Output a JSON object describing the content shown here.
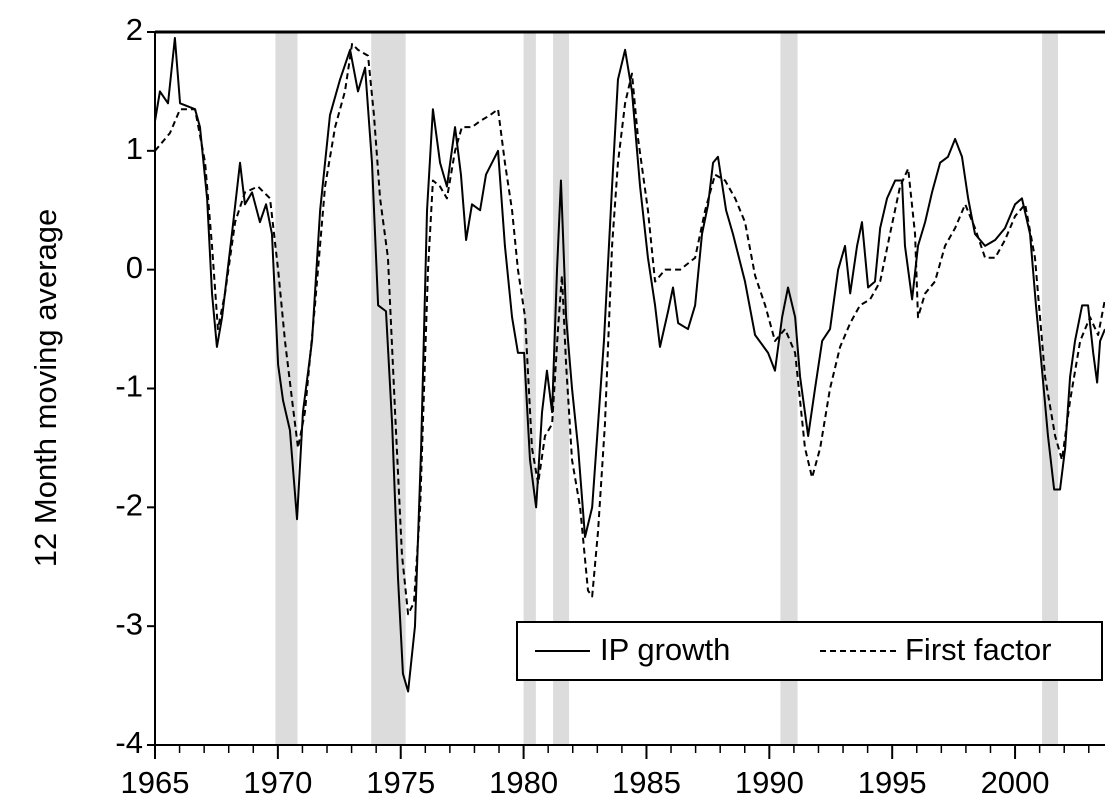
{
  "chart_data": {
    "type": "line",
    "y_label": "12 Month moving  average",
    "xlim": [
      1965,
      2003.66
    ],
    "ylim": [
      -4,
      2
    ],
    "xticks": [
      1965,
      1970,
      1975,
      1980,
      1985,
      1990,
      1995,
      2000
    ],
    "xminorticks": [
      1966,
      1967,
      1968,
      1969,
      1971,
      1972,
      1973,
      1974,
      1976,
      1977,
      1978,
      1979,
      1981,
      1982,
      1983,
      1984,
      1986,
      1987,
      1988,
      1989,
      1991,
      1992,
      1993,
      1994,
      1996,
      1997,
      1998,
      1999,
      2001,
      2002,
      2003
    ],
    "yticks": [
      2,
      1,
      0,
      -1,
      -2,
      -3,
      -4
    ],
    "legend": "lower right",
    "recession_color": "#dcdcdc",
    "recessions": [
      [
        1969.9,
        1970.8
      ],
      [
        1973.8,
        1975.2
      ],
      [
        1980.0,
        1980.5
      ],
      [
        1981.2,
        1981.85
      ],
      [
        1990.45,
        1991.15
      ],
      [
        2001.1,
        2001.75
      ]
    ],
    "series": [
      {
        "name": "IP growth",
        "color": "#000000",
        "dash": "solid",
        "x": [
          1965.0,
          1965.2,
          1965.53,
          1965.81,
          1966.02,
          1966.63,
          1966.83,
          1967.12,
          1967.32,
          1967.52,
          1967.73,
          1968.13,
          1968.46,
          1968.66,
          1968.95,
          1969.27,
          1969.52,
          1969.76,
          1970.01,
          1970.21,
          1970.49,
          1970.78,
          1971.02,
          1971.39,
          1971.72,
          1972.12,
          1972.53,
          1972.94,
          1973.26,
          1973.55,
          1973.83,
          1974.08,
          1974.4,
          1974.65,
          1974.89,
          1975.09,
          1975.3,
          1975.58,
          1975.83,
          1976.07,
          1976.31,
          1976.6,
          1976.88,
          1977.21,
          1977.45,
          1977.66,
          1977.9,
          1978.23,
          1978.47,
          1978.96,
          1979.24,
          1979.53,
          1979.77,
          1980.02,
          1980.26,
          1980.51,
          1980.75,
          1980.95,
          1981.16,
          1981.36,
          1981.52,
          1981.73,
          1981.97,
          1982.22,
          1982.5,
          1982.79,
          1983.03,
          1983.27,
          1983.6,
          1983.84,
          1984.13,
          1984.41,
          1984.74,
          1985.06,
          1985.35,
          1985.55,
          1985.88,
          1986.08,
          1986.29,
          1986.69,
          1986.98,
          1987.26,
          1987.51,
          1987.71,
          1987.91,
          1988.24,
          1988.52,
          1989.01,
          1989.42,
          1989.95,
          1990.23,
          1990.52,
          1990.76,
          1991.05,
          1991.25,
          1991.58,
          1991.86,
          1992.15,
          1992.47,
          1992.8,
          1993.08,
          1993.29,
          1993.57,
          1993.77,
          1994.02,
          1994.3,
          1994.51,
          1994.79,
          1995.12,
          1995.4,
          1995.52,
          1995.81,
          1996.05,
          1996.34,
          1996.62,
          1996.95,
          1997.27,
          1997.56,
          1997.84,
          1998.09,
          1998.37,
          1998.78,
          1999.19,
          1999.59,
          2000.0,
          2000.28,
          2000.61,
          2000.85,
          2001.1,
          2001.34,
          2001.59,
          2001.83,
          2002.04,
          2002.24,
          2002.44,
          2002.73,
          2002.97,
          2003.18,
          2003.34,
          2003.46,
          2003.66
        ],
        "values": [
          1.25,
          1.5,
          1.4,
          1.95,
          1.4,
          1.35,
          1.2,
          0.6,
          -0.2,
          -0.65,
          -0.4,
          0.3,
          0.9,
          0.55,
          0.65,
          0.4,
          0.55,
          0.3,
          -0.8,
          -1.1,
          -1.35,
          -2.1,
          -1.2,
          -0.6,
          0.5,
          1.3,
          1.6,
          1.85,
          1.5,
          1.7,
          0.9,
          -0.3,
          -0.35,
          -1.3,
          -2.6,
          -3.4,
          -3.55,
          -3.0,
          -1.5,
          0.5,
          1.35,
          0.9,
          0.7,
          1.2,
          0.8,
          0.25,
          0.55,
          0.5,
          0.8,
          1.0,
          0.2,
          -0.4,
          -0.7,
          -0.7,
          -1.6,
          -2.0,
          -1.2,
          -0.85,
          -1.2,
          0.0,
          0.75,
          -0.4,
          -1.0,
          -1.5,
          -2.25,
          -2.0,
          -1.3,
          -0.6,
          0.7,
          1.6,
          1.85,
          1.5,
          0.7,
          0.1,
          -0.3,
          -0.65,
          -0.35,
          -0.15,
          -0.45,
          -0.5,
          -0.3,
          0.3,
          0.55,
          0.9,
          0.95,
          0.5,
          0.3,
          -0.1,
          -0.55,
          -0.7,
          -0.85,
          -0.4,
          -0.15,
          -0.4,
          -0.9,
          -1.4,
          -1.0,
          -0.6,
          -0.5,
          0.0,
          0.2,
          -0.2,
          0.2,
          0.4,
          -0.15,
          -0.1,
          0.35,
          0.6,
          0.75,
          0.75,
          0.2,
          -0.25,
          0.2,
          0.4,
          0.65,
          0.9,
          0.95,
          1.1,
          0.95,
          0.6,
          0.3,
          0.2,
          0.25,
          0.35,
          0.55,
          0.6,
          0.3,
          -0.3,
          -0.85,
          -1.4,
          -1.85,
          -1.85,
          -1.5,
          -0.9,
          -0.6,
          -0.3,
          -0.3,
          -0.7,
          -0.95,
          -0.6,
          -0.5
        ]
      },
      {
        "name": "First factor",
        "color": "#000000",
        "dash": "dashed",
        "x": [
          1965.0,
          1965.61,
          1966.02,
          1966.63,
          1967.04,
          1967.32,
          1967.56,
          1967.85,
          1968.26,
          1968.66,
          1969.19,
          1969.68,
          1970.01,
          1970.29,
          1970.58,
          1970.82,
          1971.1,
          1971.51,
          1971.92,
          1972.33,
          1972.73,
          1973.02,
          1973.26,
          1973.67,
          1973.91,
          1974.16,
          1974.48,
          1974.77,
          1975.05,
          1975.3,
          1975.54,
          1975.79,
          1976.11,
          1976.31,
          1976.6,
          1976.88,
          1977.21,
          1977.49,
          1977.9,
          1978.23,
          1978.63,
          1978.96,
          1979.24,
          1979.53,
          1979.77,
          1980.06,
          1980.34,
          1980.59,
          1980.87,
          1981.16,
          1981.4,
          1981.56,
          1981.73,
          1981.97,
          1982.3,
          1982.62,
          1982.79,
          1983.03,
          1983.31,
          1983.6,
          1983.84,
          1984.13,
          1984.41,
          1984.66,
          1985.06,
          1985.35,
          1985.76,
          1986.37,
          1986.98,
          1987.39,
          1987.79,
          1988.2,
          1988.61,
          1989.01,
          1989.42,
          1989.83,
          1990.23,
          1990.64,
          1991.05,
          1991.45,
          1991.74,
          1992.07,
          1992.47,
          1992.88,
          1993.29,
          1993.69,
          1994.1,
          1994.51,
          1994.91,
          1995.32,
          1995.65,
          1995.93,
          1996.05,
          1996.34,
          1996.74,
          1997.15,
          1997.56,
          1997.97,
          1998.37,
          1998.78,
          1999.19,
          1999.59,
          2000.0,
          2000.41,
          2000.81,
          2001.22,
          2001.63,
          2001.91,
          2002.24,
          2002.65,
          2003.05,
          2003.38,
          2003.66
        ],
        "values": [
          1.0,
          1.15,
          1.35,
          1.35,
          0.9,
          0.2,
          -0.5,
          -0.2,
          0.4,
          0.65,
          0.7,
          0.6,
          0.0,
          -0.6,
          -1.1,
          -1.5,
          -1.2,
          -0.3,
          0.7,
          1.2,
          1.5,
          1.9,
          1.85,
          1.8,
          1.3,
          0.6,
          0.1,
          -1.2,
          -2.4,
          -2.9,
          -2.8,
          -2.0,
          0.0,
          0.75,
          0.7,
          0.6,
          1.0,
          1.2,
          1.2,
          1.25,
          1.3,
          1.35,
          0.9,
          0.5,
          0.0,
          -0.4,
          -1.5,
          -1.8,
          -1.4,
          -1.3,
          -0.5,
          -0.05,
          -0.8,
          -1.6,
          -2.0,
          -2.7,
          -2.75,
          -2.2,
          -1.3,
          0.2,
          0.9,
          1.4,
          1.65,
          1.1,
          0.5,
          -0.1,
          0.0,
          0.0,
          0.1,
          0.5,
          0.8,
          0.75,
          0.6,
          0.4,
          -0.05,
          -0.3,
          -0.6,
          -0.5,
          -0.7,
          -1.5,
          -1.75,
          -1.5,
          -1.0,
          -0.65,
          -0.45,
          -0.3,
          -0.25,
          -0.1,
          0.3,
          0.7,
          0.85,
          0.3,
          -0.4,
          -0.2,
          -0.1,
          0.2,
          0.35,
          0.55,
          0.35,
          0.1,
          0.1,
          0.25,
          0.45,
          0.55,
          0.1,
          -0.9,
          -1.4,
          -1.6,
          -1.1,
          -0.6,
          -0.4,
          -0.55,
          -0.25
        ]
      }
    ]
  }
}
